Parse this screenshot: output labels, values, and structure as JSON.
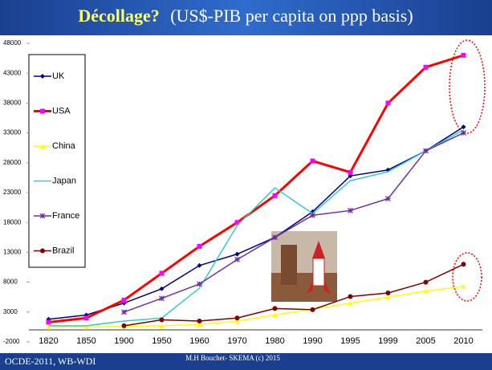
{
  "chart_data": {
    "type": "line",
    "title": "Décollage?",
    "subtitle": "(US$-PIB per capita on ppp basis)",
    "categories": [
      "1820",
      "1850",
      "1900",
      "1950",
      "1960",
      "1970",
      "1980",
      "1990",
      "1995",
      "1999",
      "2005",
      "2010"
    ],
    "series": [
      {
        "name": "UK",
        "color": "#000080",
        "marker": "diamond",
        "values": [
          1800,
          2500,
          4500,
          6900,
          10800,
          12700,
          15500,
          19800,
          25800,
          26800,
          30000,
          34000
        ]
      },
      {
        "name": "USA",
        "color": "#ff0000",
        "marker": "square",
        "values": [
          1300,
          2000,
          5000,
          9500,
          14000,
          18000,
          22500,
          28300,
          26400,
          38000,
          44000,
          46000
        ]
      },
      {
        "name": "China",
        "color": "#ffff00",
        "marker": "triangle",
        "values": [
          500,
          500,
          600,
          700,
          900,
          1500,
          2500,
          3500,
          4500,
          5500,
          6500,
          7300
        ]
      },
      {
        "name": "Japan",
        "color": "#33cccc",
        "marker": "none",
        "values": [
          700,
          700,
          1500,
          2000,
          7000,
          17500,
          23800,
          19500,
          25000,
          26500,
          30000,
          33500
        ]
      },
      {
        "name": "France",
        "color": "#7030a0",
        "marker": "star",
        "values": [
          null,
          null,
          3000,
          5300,
          7700,
          11800,
          15500,
          19200,
          20000,
          22000,
          30000,
          33000
        ]
      },
      {
        "name": "Brazil",
        "color": "#800000",
        "marker": "circle",
        "values": [
          null,
          null,
          700,
          1700,
          1500,
          2000,
          3600,
          3400,
          5600,
          6200,
          8000,
          11000
        ]
      }
    ],
    "ylim": [
      -2000,
      48000
    ],
    "yticks": [
      -2000,
      3000,
      8000,
      13000,
      18000,
      23000,
      28000,
      33000,
      38000,
      43000,
      48000
    ],
    "grid": false,
    "legend": "left"
  },
  "footer": {
    "source": "OCDE-2011, WB-WDI",
    "credit": "M.H Bouchet- SKEMA (c) 2015"
  }
}
